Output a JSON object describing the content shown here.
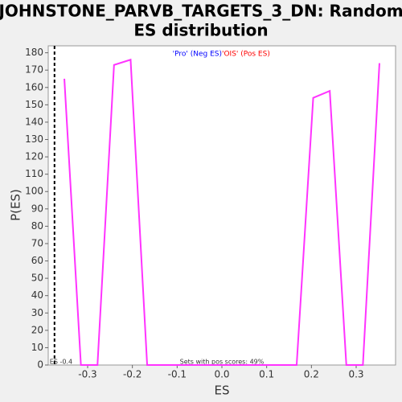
{
  "chart_data": {
    "type": "line",
    "title_lines": [
      "JOHNSTONE_PARVB_TARGETS_3_DN: Random",
      "ES distribution"
    ],
    "x_label": "ES",
    "y_label": "P(ES)",
    "legend": [
      {
        "text": "'Pro' (Neg ES)",
        "color": "#0000ff"
      },
      {
        "text": "'OIS' (Pos ES)",
        "color": "#ff0000"
      }
    ],
    "annotation": "Sets with pos scores: 49%",
    "marker": {
      "value": -0.374,
      "label": "ES -0.4"
    },
    "series": [
      {
        "color": "#ff33ff",
        "x": [
          -0.352,
          -0.315,
          -0.278,
          -0.241,
          -0.204,
          -0.167,
          0.167,
          0.204,
          0.241,
          0.278,
          0.315,
          0.352
        ],
        "values": [
          165,
          0,
          0,
          173,
          176,
          0,
          0,
          154,
          158,
          0,
          0,
          174
        ]
      }
    ],
    "xlim": [
      -0.388,
      0.388
    ],
    "xticks": [
      -0.3,
      -0.2,
      -0.1,
      {
        "value": 0,
        "label": "0.0"
      },
      0.1,
      0.2,
      0.3
    ],
    "ylim": [
      0,
      184
    ],
    "yticks": [
      0,
      10,
      20,
      30,
      40,
      50,
      60,
      70,
      80,
      90,
      100,
      110,
      120,
      130,
      140,
      150,
      160,
      170,
      180
    ]
  }
}
